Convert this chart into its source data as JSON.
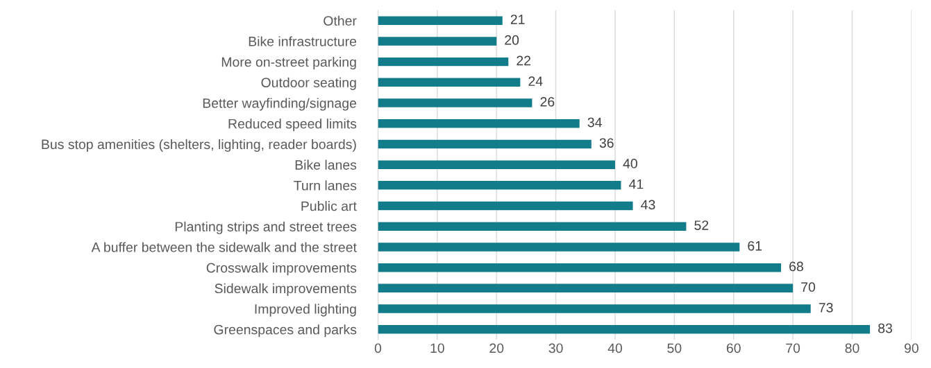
{
  "chart_data": {
    "type": "bar",
    "orientation": "horizontal",
    "categories": [
      "Other",
      "Bike infrastructure",
      "More on-street parking",
      "Outdoor seating",
      "Better wayfinding/signage",
      "Reduced speed limits",
      "Bus stop amenities (shelters, lighting, reader boards)",
      "Bike lanes",
      "Turn lanes",
      "Public art",
      "Planting strips and street trees",
      "A buffer between the sidewalk and the street",
      "Crosswalk improvements",
      "Sidewalk improvements",
      "Improved lighting",
      "Greenspaces and parks"
    ],
    "values": [
      21,
      20,
      22,
      24,
      26,
      34,
      36,
      40,
      41,
      43,
      52,
      61,
      68,
      70,
      73,
      83
    ],
    "color": "#127c8a",
    "data_labels": true,
    "grid": "x",
    "xlim": [
      0,
      90
    ],
    "xticks": [
      0,
      10,
      20,
      30,
      40,
      50,
      60,
      70,
      80,
      90
    ]
  }
}
